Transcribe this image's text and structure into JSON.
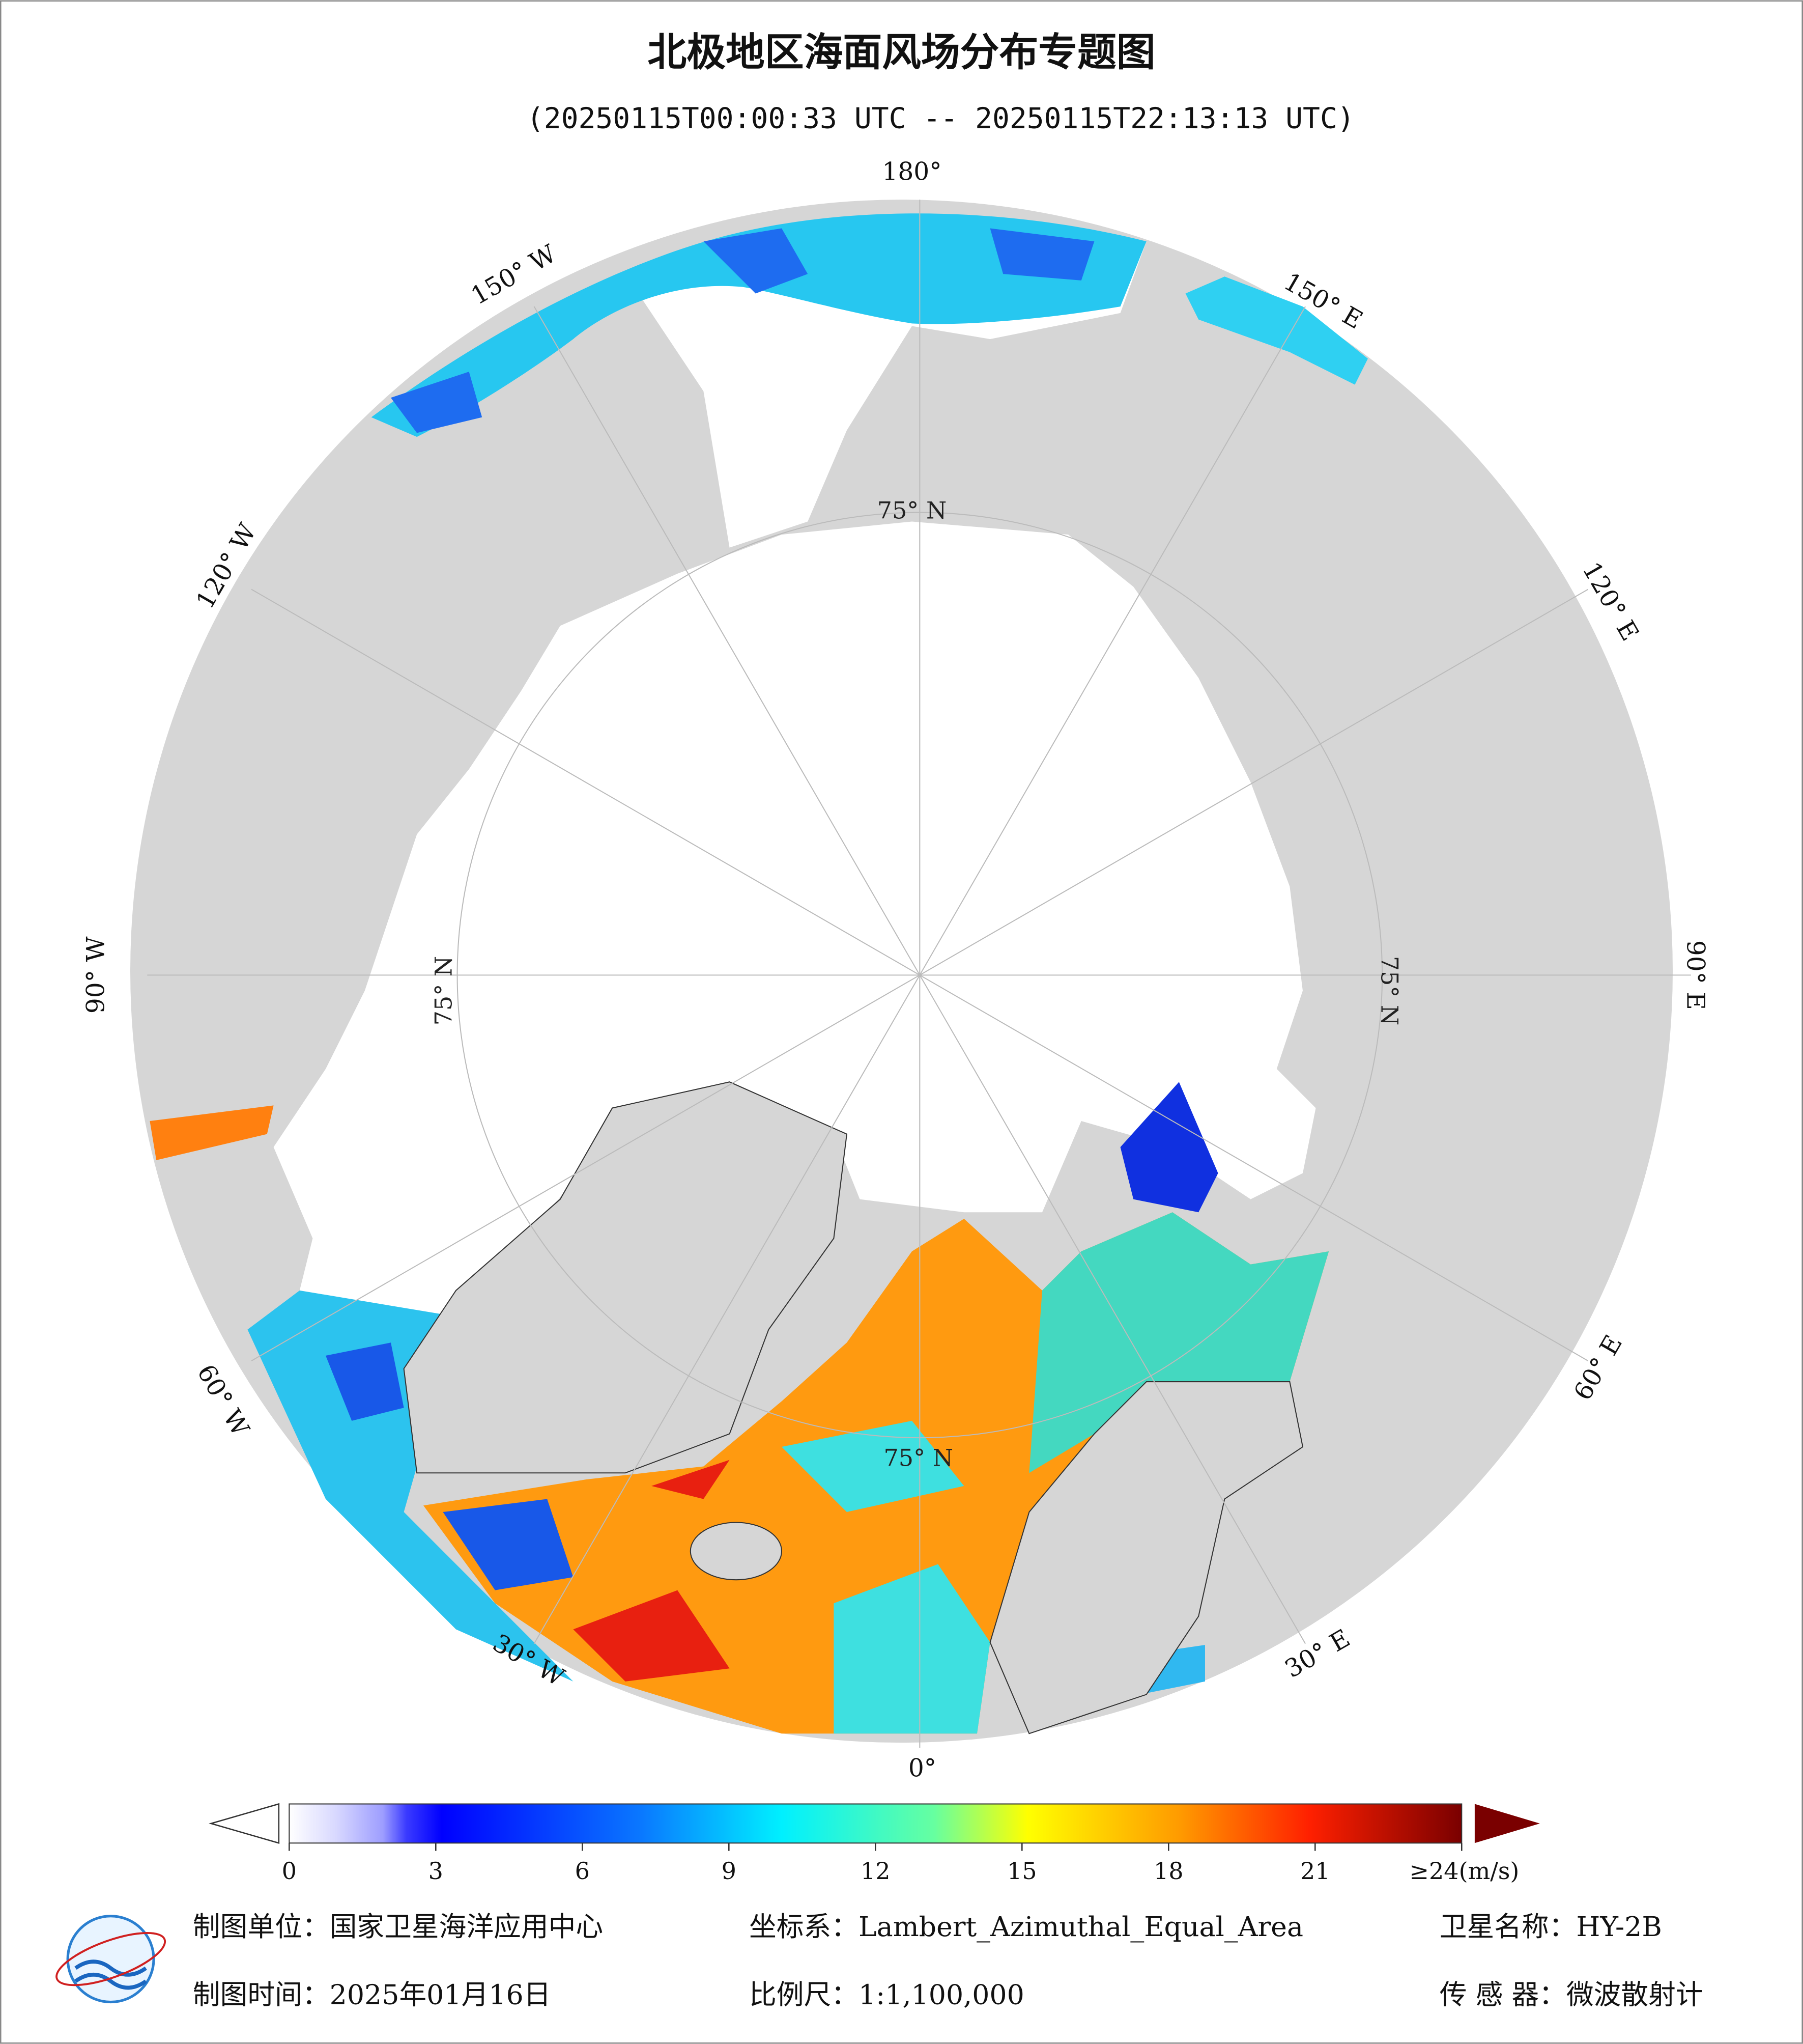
{
  "title": "北极地区海面风场分布专题图",
  "subtitle": "(20250115T00:00:33 UTC -- 20250115T22:13:13 UTC)",
  "map": {
    "longitude_labels": [
      "180°",
      "150° W",
      "120° W",
      "90° W",
      "60° W",
      "30° W",
      "0°",
      "30° E",
      "60° E",
      "90° E",
      "120° E",
      "150° E"
    ],
    "latitude_labels": [
      "75° N",
      "75° N",
      "75° N",
      "75° N"
    ]
  },
  "colorbar": {
    "ticks": [
      0,
      3,
      6,
      9,
      12,
      15,
      18,
      21,
      {
        "value": 24,
        "label": "≥24(m/s)"
      }
    ]
  },
  "footer": {
    "unit": "制图单位：国家卫星海洋应用中心",
    "coord": "坐标系：Lambert_Azimuthal_Equal_Area",
    "satellite": "卫星名称：HY-2B",
    "date": "制图时间：2025年01月16日",
    "scale": "比例尺：1:1,100,000",
    "sensor": "传 感 器：微波散射计"
  }
}
